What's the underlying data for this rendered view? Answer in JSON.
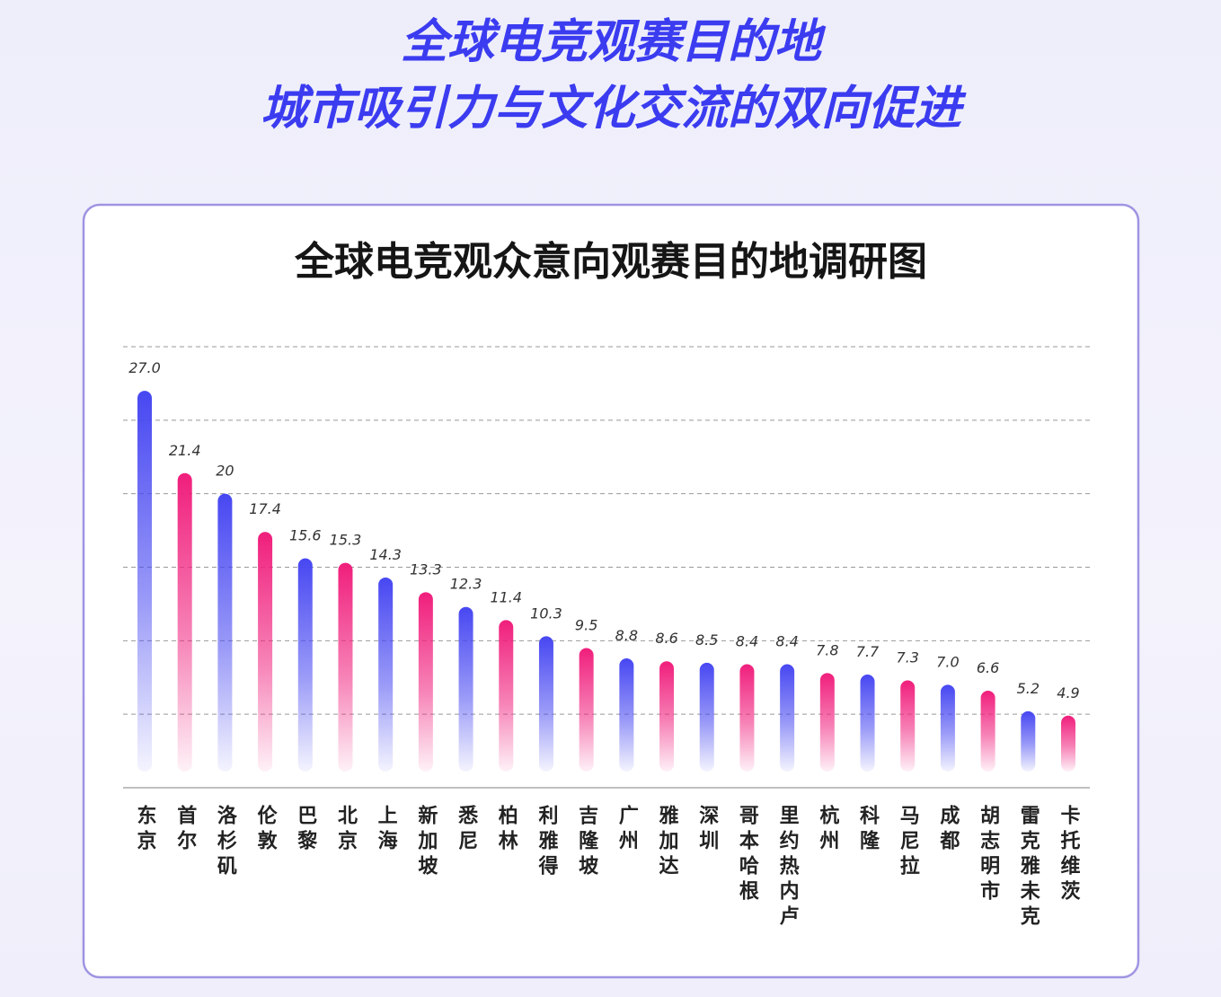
{
  "header": {
    "title_line1": "全球电竞观赛目的地",
    "title_line2": "城市吸引力与文化交流的双向促进"
  },
  "chart_data": {
    "type": "bar",
    "title": "全球电竞观众意向观赛目的地调研图",
    "categories": [
      "东京",
      "首尔",
      "洛杉矶",
      "伦敦",
      "巴黎",
      "北京",
      "上海",
      "新加坡",
      "悉尼",
      "柏林",
      "利雅得",
      "吉隆坡",
      "广州",
      "雅加达",
      "深圳",
      "哥本哈根",
      "里约热内卢",
      "杭州",
      "科隆",
      "马尼拉",
      "成都",
      "胡志明市",
      "雷克雅未克",
      "卡托维茨"
    ],
    "values": [
      27.0,
      21.4,
      20,
      17.4,
      15.6,
      15.3,
      14.3,
      13.3,
      12.3,
      11.4,
      10.3,
      9.5,
      8.8,
      8.6,
      8.5,
      8.4,
      8.4,
      7.8,
      7.7,
      7.3,
      7.0,
      6.6,
      5.2,
      4.9
    ],
    "value_labels": [
      "27.0",
      "21.4",
      "20",
      "17.4",
      "15.6",
      "15.3",
      "14.3",
      "13.3",
      "12.3",
      "11.4",
      "10.3",
      "9.5",
      "8.8",
      "8.6",
      "8.5",
      "8.4",
      "8.4",
      "7.8",
      "7.7",
      "7.3",
      "7.0",
      "6.6",
      "5.2",
      "4.9"
    ],
    "colors": [
      "#4747f2",
      "#f01e7c"
    ],
    "ylim": [
      0,
      30
    ],
    "yticks": [
      5,
      10,
      15,
      20,
      25,
      30
    ],
    "grid": true
  }
}
